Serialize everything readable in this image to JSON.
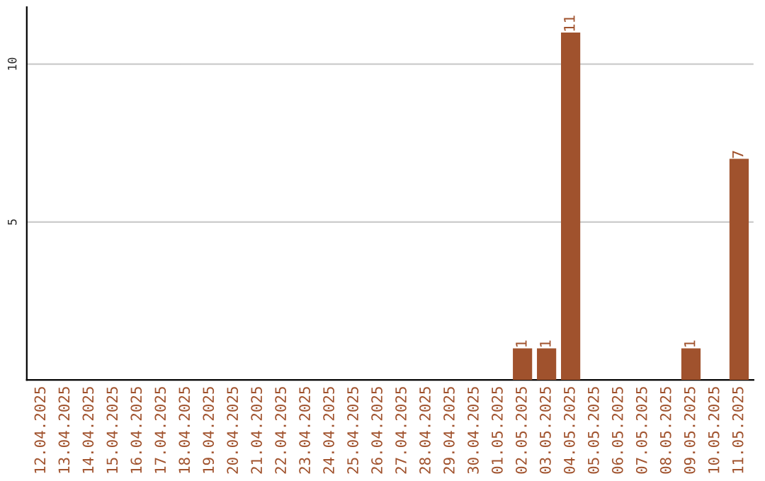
{
  "chart_data": {
    "type": "bar",
    "categories": [
      "12.04.2025",
      "13.04.2025",
      "14.04.2025",
      "15.04.2025",
      "16.04.2025",
      "17.04.2025",
      "18.04.2025",
      "19.04.2025",
      "20.04.2025",
      "21.04.2025",
      "22.04.2025",
      "23.04.2025",
      "24.04.2025",
      "25.04.2025",
      "26.04.2025",
      "27.04.2025",
      "28.04.2025",
      "29.04.2025",
      "30.04.2025",
      "01.05.2025",
      "02.05.2025",
      "03.05.2025",
      "04.05.2025",
      "05.05.2025",
      "06.05.2025",
      "07.05.2025",
      "08.05.2025",
      "09.05.2025",
      "10.05.2025",
      "11.05.2025"
    ],
    "values": [
      0,
      0,
      0,
      0,
      0,
      0,
      0,
      0,
      0,
      0,
      0,
      0,
      0,
      0,
      0,
      0,
      0,
      0,
      0,
      0,
      1,
      1,
      11,
      0,
      0,
      0,
      0,
      1,
      0,
      7
    ],
    "value_labels": [
      null,
      null,
      null,
      null,
      null,
      null,
      null,
      null,
      null,
      null,
      null,
      null,
      null,
      null,
      null,
      null,
      null,
      null,
      null,
      null,
      "1",
      "1",
      "11",
      null,
      null,
      null,
      null,
      "1",
      null,
      "7"
    ],
    "color": "#a0522d",
    "ylim": [
      0,
      11.8
    ],
    "yticks": [
      5,
      10
    ],
    "grid": "y"
  }
}
